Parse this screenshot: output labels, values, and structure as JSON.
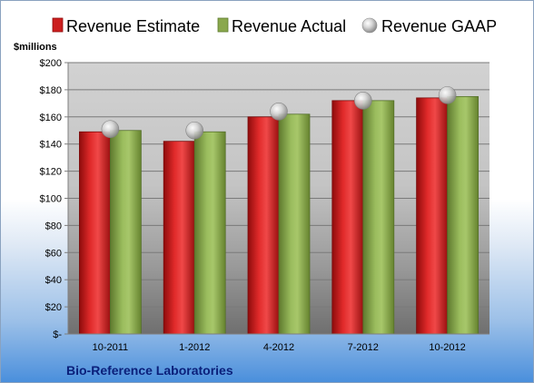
{
  "chart_data": {
    "type": "bar",
    "categories": [
      "10-2011",
      "1-2012",
      "4-2012",
      "7-2012",
      "10-2012"
    ],
    "series": [
      {
        "name": "Revenue Estimate",
        "kind": "bar",
        "color": "#cc1f1f",
        "values": [
          149,
          142,
          160,
          172,
          174
        ]
      },
      {
        "name": "Revenue Actual",
        "kind": "bar",
        "color": "#8aa84d",
        "values": [
          150,
          149,
          162,
          172,
          175
        ]
      },
      {
        "name": "Revenue GAAP",
        "kind": "marker",
        "color": "#c8c8c8",
        "values": [
          151,
          150,
          164,
          172,
          176
        ]
      }
    ],
    "y_unit_label": "$millions",
    "y_ticks": [
      "$-",
      "$20",
      "$40",
      "$60",
      "$80",
      "$100",
      "$120",
      "$140",
      "$160",
      "$180",
      "$200"
    ],
    "ylim": [
      0,
      200
    ],
    "y_step": 20,
    "grid": true,
    "legend_position": "top",
    "company_label": "Bio-Reference Laboratories"
  }
}
